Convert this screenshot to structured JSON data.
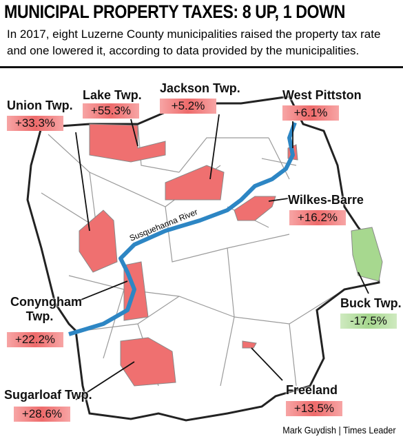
{
  "header": {
    "title": "MUNICIPAL PROPERTY TAXES: 8 UP, 1 DOWN",
    "subtitle": "In 2017, eight Luzerne County municipalities raised the property tax rate and one lowered it, according to data provided by the municipalities."
  },
  "municipalities": [
    {
      "name": "Union Twp.",
      "change": "+33.3%"
    },
    {
      "name": "Lake Twp.",
      "change": "+55.3%"
    },
    {
      "name": "Jackson Twp.",
      "change": "+5.2%"
    },
    {
      "name": "West Pittston",
      "change": "+6.1%"
    },
    {
      "name": "Wilkes-Barre",
      "change": "+16.2%"
    },
    {
      "name": "Buck Twp.",
      "change": "-17.5%"
    },
    {
      "name": "Conyngham Twp.",
      "change": "+22.2%"
    },
    {
      "name": "Sugarloaf Twp.",
      "change": "+28.6%"
    },
    {
      "name": "Freeland",
      "change": "+13.5%"
    }
  ],
  "river": "Susquehanna River",
  "credit": "Mark Guydish | Times Leader"
}
